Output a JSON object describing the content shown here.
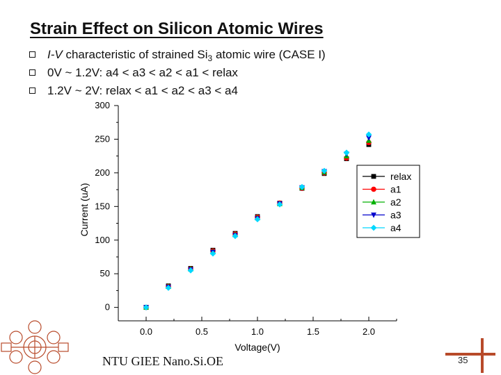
{
  "slide": {
    "title": "Strain Effect on Silicon Atomic Wires",
    "bullets": [
      {
        "pre": "I-V",
        "text": " characteristic of strained Si",
        "sub": "3",
        "post": " atomic wire (CASE I)"
      },
      {
        "text": "0V ~ 1.2V: a4 < a3 < a2 < a1 < relax"
      },
      {
        "text": "1.2V ~ 2V: relax < a1 < a2 < a3 < a4"
      }
    ],
    "footer": "NTU GIEE Nano.Si.OE",
    "page_number": "35",
    "logo": {
      "icon": "institution-seal-icon"
    },
    "accent_color": "#b84a2a"
  },
  "chart_data": {
    "type": "scatter",
    "xlabel": "Voltage(V)",
    "ylabel": "Current (uA)",
    "xlim": [
      -0.25,
      2.25
    ],
    "ylim": [
      -20,
      300
    ],
    "xticks": [
      "0.0",
      "0.5",
      "1.0",
      "1.5",
      "2.0"
    ],
    "yticks": [
      "0",
      "50",
      "100",
      "150",
      "200",
      "250",
      "300"
    ],
    "legend_position": "right",
    "x": [
      0.0,
      0.2,
      0.4,
      0.6,
      0.8,
      1.0,
      1.2,
      1.4,
      1.6,
      1.8,
      2.0
    ],
    "series": [
      {
        "name": "relax",
        "marker": "square",
        "color": "#000000",
        "values": [
          0,
          32,
          58,
          85,
          110,
          135,
          155,
          177,
          199,
          221,
          242
        ]
      },
      {
        "name": "a1",
        "marker": "circle",
        "color": "#ff0000",
        "values": [
          0,
          31,
          57,
          84,
          109,
          134,
          155,
          177,
          200,
          222,
          245
        ]
      },
      {
        "name": "a2",
        "marker": "triangle-up",
        "color": "#00b000",
        "values": [
          0,
          31,
          57,
          83,
          108,
          133,
          154,
          178,
          201,
          225,
          248
        ]
      },
      {
        "name": "a3",
        "marker": "triangle-down",
        "color": "#0000cc",
        "values": [
          0,
          30,
          56,
          82,
          107,
          132,
          154,
          178,
          202,
          228,
          252
        ]
      },
      {
        "name": "a4",
        "marker": "diamond",
        "color": "#00d8ff",
        "values": [
          0,
          29,
          55,
          80,
          106,
          131,
          153,
          179,
          203,
          230,
          257
        ]
      }
    ]
  }
}
